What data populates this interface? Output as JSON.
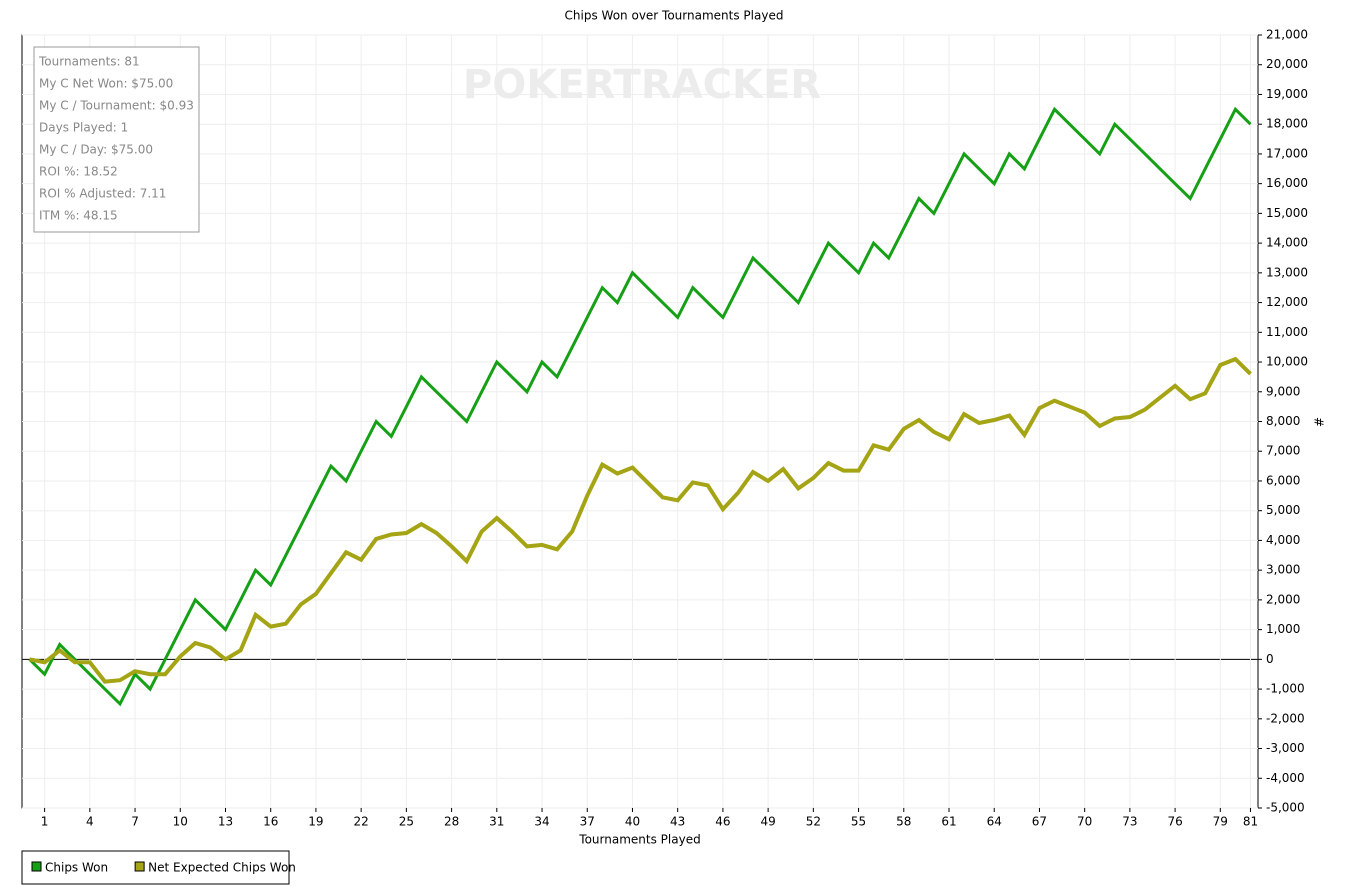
{
  "chart_data": {
    "type": "line",
    "title": "Chips Won over Tournaments Played",
    "xlabel": "Tournaments Played",
    "ylabel": "#",
    "watermark": "POKERTRACKER",
    "stats": [
      "Tournaments: 81",
      "My C Net Won: $75.00",
      "My C / Tournament: $0.93",
      "Days Played: 1",
      "My C / Day: $75.00",
      "ROI %: 18.52",
      "ROI % Adjusted: 7.11",
      "ITM %: 48.15"
    ],
    "grid": true,
    "legend": "below",
    "x": [
      0,
      1,
      2,
      3,
      4,
      5,
      6,
      7,
      8,
      9,
      10,
      11,
      12,
      13,
      14,
      15,
      16,
      17,
      18,
      19,
      20,
      21,
      22,
      23,
      24,
      25,
      26,
      27,
      28,
      29,
      30,
      31,
      32,
      33,
      34,
      35,
      36,
      37,
      38,
      39,
      40,
      41,
      42,
      43,
      44,
      45,
      46,
      47,
      48,
      49,
      50,
      51,
      52,
      53,
      54,
      55,
      56,
      57,
      58,
      59,
      60,
      61,
      62,
      63,
      64,
      65,
      66,
      67,
      68,
      69,
      70,
      71,
      72,
      73,
      74,
      75,
      76,
      77,
      78,
      79,
      80,
      81
    ],
    "xlim": [
      -0.5,
      81.5
    ],
    "xticks": [
      1,
      4,
      7,
      10,
      13,
      16,
      19,
      22,
      25,
      28,
      31,
      34,
      37,
      40,
      43,
      46,
      49,
      52,
      55,
      58,
      61,
      64,
      67,
      70,
      73,
      76,
      79,
      81
    ],
    "ylim": [
      -5000,
      21000
    ],
    "yticks": [
      {
        "value": -5000,
        "label": "-5,000"
      },
      {
        "value": -4000,
        "label": "-4,000"
      },
      {
        "value": -3000,
        "label": "-3,000"
      },
      {
        "value": -2000,
        "label": "-2,000"
      },
      {
        "value": -1000,
        "label": "-1,000"
      },
      0,
      {
        "value": 1000,
        "label": "1,000"
      },
      {
        "value": 2000,
        "label": "2,000"
      },
      {
        "value": 3000,
        "label": "3,000"
      },
      {
        "value": 4000,
        "label": "4,000"
      },
      {
        "value": 5000,
        "label": "5,000"
      },
      {
        "value": 6000,
        "label": "6,000"
      },
      {
        "value": 7000,
        "label": "7,000"
      },
      {
        "value": 8000,
        "label": "8,000"
      },
      {
        "value": 9000,
        "label": "9,000"
      },
      {
        "value": 10000,
        "label": "10,000"
      },
      {
        "value": 11000,
        "label": "11,000"
      },
      {
        "value": 12000,
        "label": "12,000"
      },
      {
        "value": 13000,
        "label": "13,000"
      },
      {
        "value": 14000,
        "label": "14,000"
      },
      {
        "value": 15000,
        "label": "15,000"
      },
      {
        "value": 16000,
        "label": "16,000"
      },
      {
        "value": 17000,
        "label": "17,000"
      },
      {
        "value": 18000,
        "label": "18,000"
      },
      {
        "value": 19000,
        "label": "19,000"
      },
      {
        "value": 20000,
        "label": "20,000"
      },
      {
        "value": 21000,
        "label": "21,000"
      }
    ],
    "series": [
      {
        "name": "Chips Won",
        "color": "#16a016",
        "width": 3,
        "values": [
          0,
          -500,
          500,
          0,
          -500,
          -1000,
          -1500,
          -500,
          -1000,
          0,
          1000,
          2000,
          1500,
          1000,
          2000,
          3000,
          2500,
          3500,
          4500,
          5500,
          6500,
          6000,
          7000,
          8000,
          7500,
          8500,
          9500,
          9000,
          8500,
          8000,
          9000,
          10000,
          9500,
          9000,
          10000,
          9500,
          10500,
          11500,
          12500,
          12000,
          13000,
          12500,
          12000,
          11500,
          12500,
          12000,
          11500,
          12500,
          13500,
          13000,
          12500,
          12000,
          13000,
          14000,
          13500,
          13000,
          14000,
          13500,
          14500,
          15500,
          15000,
          16000,
          17000,
          16500,
          16000,
          17000,
          16500,
          17500,
          18500,
          18000,
          17500,
          17000,
          18000,
          17500,
          17000,
          16500,
          16000,
          15500,
          16500,
          17500,
          18500,
          18000
        ]
      },
      {
        "name": "Net Expected Chips Won",
        "color": "#a4a414",
        "width": 4,
        "values": [
          0,
          -100,
          300,
          -100,
          -100,
          -750,
          -700,
          -400,
          -500,
          -500,
          100,
          550,
          400,
          0,
          300,
          1500,
          1100,
          1200,
          1850,
          2200,
          2900,
          3600,
          3350,
          4050,
          4200,
          4250,
          4550,
          4250,
          3800,
          3300,
          4300,
          4750,
          4300,
          3800,
          3850,
          3700,
          4300,
          5500,
          6550,
          6250,
          6450,
          5950,
          5450,
          5350,
          5950,
          5850,
          5050,
          5600,
          6300,
          6000,
          6400,
          5750,
          6100,
          6600,
          6350,
          6350,
          7200,
          7050,
          7750,
          8050,
          7650,
          7400,
          8250,
          7950,
          8050,
          8200,
          7550,
          8450,
          8700,
          8500,
          8300,
          7850,
          8100,
          8150,
          8400,
          8800,
          9200,
          8750,
          8950,
          9900,
          10100,
          9600
        ]
      }
    ]
  }
}
